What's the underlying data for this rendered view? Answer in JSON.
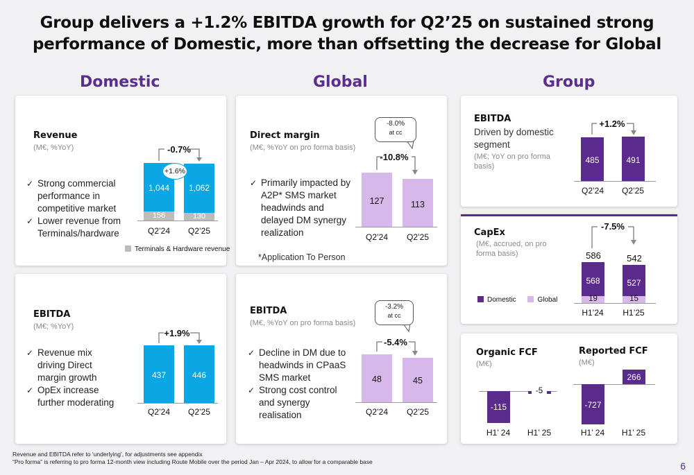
{
  "title": {
    "line1": "Group delivers a +1.2% EBITDA growth for Q2’25 on sustained strong",
    "line2": "performance of Domestic, more than offsetting the decrease for Global"
  },
  "columns": {
    "domestic": "Domestic",
    "global": "Global",
    "group": "Group"
  },
  "colors": {
    "domestic_blue": "#0aa7e4",
    "grey": "#bdbdbd",
    "global_lilac": "#d8b7ea",
    "group_purple": "#5a2a8c",
    "heading_purple": "#5b2d8e"
  },
  "domestic_revenue": {
    "title": "Revenue",
    "subtitle": "(M€, %YoY)",
    "bullets": [
      "Strong commercial performance in competitive market",
      "Lower revenue from Terminals/hardware"
    ],
    "growth": "-0.7%",
    "inner_growth": "+1.6%",
    "legend": "Terminals & Hardware revenue",
    "chart_data": {
      "type": "bar",
      "categories": [
        "Q2’24",
        "Q2’25"
      ],
      "series": [
        {
          "name": "Terminals & Hardware revenue",
          "values": [
            156,
            130
          ]
        },
        {
          "values": [
            1044,
            1062
          ]
        }
      ],
      "labels": [
        "1,044",
        "1,062"
      ],
      "label_bottom": [
        "156",
        "130"
      ]
    }
  },
  "domestic_ebitda": {
    "title": "EBITDA",
    "subtitle": "(M€; %YoY)",
    "bullets": [
      "Revenue mix driving Direct margin growth",
      "OpEx increase further moderating"
    ],
    "growth": "+1.9%",
    "chart_data": {
      "type": "bar",
      "categories": [
        "Q2’24",
        "Q2’25"
      ],
      "values": [
        437,
        446
      ]
    }
  },
  "global_margin": {
    "title": "Direct margin",
    "subtitle": "(M€, %YoY on pro forma basis)",
    "bullets": [
      "Primarily impacted by A2P* SMS market headwinds and delayed DM synergy realization"
    ],
    "note": "*Application To Person",
    "growth": "-10.8%",
    "callout_value": "-8.0%",
    "callout_sub": "at cc",
    "chart_data": {
      "type": "bar",
      "categories": [
        "Q2’24",
        "Q2’25"
      ],
      "values": [
        127,
        113
      ]
    }
  },
  "global_ebitda": {
    "title": "EBITDA",
    "subtitle": "(M€, %YoY on pro forma basis)",
    "bullets": [
      "Decline in DM due to headwinds in CPaaS SMS market",
      "Strong cost control and synergy realisation"
    ],
    "growth": "-5.4%",
    "callout_value": "-3.2%",
    "callout_sub": "at cc",
    "chart_data": {
      "type": "bar",
      "categories": [
        "Q2’24",
        "Q2’25"
      ],
      "values": [
        48,
        45
      ]
    }
  },
  "group_ebitda": {
    "title": "EBITDA",
    "subtitle1": "Driven by domestic",
    "subtitle2": "segment",
    "note1": "(M€; YoY on pro forma",
    "note2": "basis)",
    "growth": "+1.2%",
    "chart_data": {
      "type": "bar",
      "categories": [
        "Q2’24",
        "Q2’25"
      ],
      "values": [
        485,
        491
      ]
    }
  },
  "group_capex": {
    "title": "CapEx",
    "note1": "(M€, accrued, on pro",
    "note2": "forma basis)",
    "growth": "-7.5%",
    "legend_domestic": "Domestic",
    "legend_global": "Global",
    "chart_data": {
      "type": "bar",
      "categories": [
        "H1’24",
        "H1’25"
      ],
      "series": [
        {
          "name": "Domestic",
          "values": [
            568,
            527
          ]
        },
        {
          "name": "Global",
          "values": [
            19,
            15
          ]
        }
      ],
      "totals": [
        586,
        542
      ]
    }
  },
  "organic_fcf": {
    "title": "Organic FCF",
    "subtitle": "(M€)",
    "chart_data": {
      "type": "bar",
      "categories": [
        "H1’ 24",
        "H1’ 25"
      ],
      "values": [
        -115,
        -5
      ]
    }
  },
  "reported_fcf": {
    "title": "Reported FCF",
    "subtitle": "(M€)",
    "chart_data": {
      "type": "bar",
      "categories": [
        "H1’ 24",
        "H1’ 25"
      ],
      "values": [
        -727,
        266
      ]
    }
  },
  "footnotes": {
    "line1": "Revenue and EBITDA refer to ‘underlying’, for adjustments see appendix",
    "line2": "“Pro forma” is referring to pro forma 12-month view including Route Mobile over the period Jan – Apr 2024, to allow for a comparable base"
  },
  "page_number": "6"
}
